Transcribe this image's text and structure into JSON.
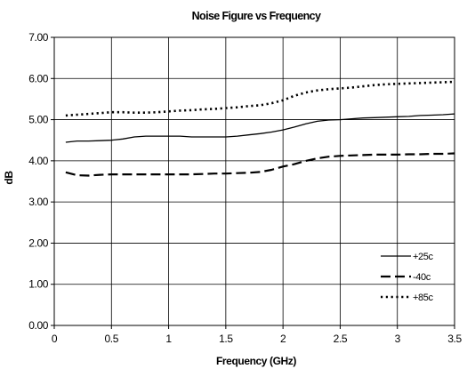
{
  "chart_data": {
    "type": "line",
    "title": "Noise Figure vs Frequency",
    "xlabel": "Frequency (GHz)",
    "ylabel": "dB",
    "xlim": [
      0,
      3.5
    ],
    "ylim": [
      0,
      7
    ],
    "x_ticks": [
      "0",
      "0.5",
      "1",
      "1.5",
      "2",
      "2.5",
      "3",
      "3.5"
    ],
    "y_ticks": [
      "0.00",
      "1.00",
      "2.00",
      "3.00",
      "4.00",
      "5.00",
      "6.00",
      "7.00"
    ],
    "grid": true,
    "legend_position": "bottom-right",
    "series": [
      {
        "name": "+25c",
        "line_style": "solid",
        "color": "#000000",
        "x": [
          0.1,
          0.2,
          0.3,
          0.4,
          0.5,
          0.6,
          0.7,
          0.8,
          0.9,
          1.0,
          1.1,
          1.2,
          1.3,
          1.4,
          1.5,
          1.6,
          1.7,
          1.8,
          1.9,
          2.0,
          2.1,
          2.2,
          2.3,
          2.4,
          2.5,
          2.6,
          2.7,
          2.8,
          2.9,
          3.0,
          3.1,
          3.2,
          3.3,
          3.4,
          3.5
        ],
        "values": [
          4.45,
          4.48,
          4.48,
          4.49,
          4.5,
          4.53,
          4.58,
          4.6,
          4.6,
          4.6,
          4.6,
          4.58,
          4.58,
          4.58,
          4.58,
          4.6,
          4.63,
          4.66,
          4.7,
          4.75,
          4.82,
          4.9,
          4.96,
          4.99,
          5.0,
          5.02,
          5.04,
          5.05,
          5.06,
          5.07,
          5.08,
          5.1,
          5.11,
          5.12,
          5.14
        ]
      },
      {
        "name": "-40c",
        "line_style": "dashed",
        "color": "#000000",
        "x": [
          0.1,
          0.2,
          0.3,
          0.4,
          0.5,
          0.6,
          0.7,
          0.8,
          0.9,
          1.0,
          1.1,
          1.2,
          1.3,
          1.4,
          1.5,
          1.6,
          1.7,
          1.8,
          1.9,
          2.0,
          2.1,
          2.2,
          2.3,
          2.4,
          2.5,
          2.6,
          2.7,
          2.8,
          2.9,
          3.0,
          3.1,
          3.2,
          3.3,
          3.4,
          3.5
        ],
        "values": [
          3.72,
          3.65,
          3.64,
          3.66,
          3.67,
          3.67,
          3.67,
          3.67,
          3.67,
          3.67,
          3.67,
          3.67,
          3.68,
          3.69,
          3.69,
          3.7,
          3.71,
          3.73,
          3.78,
          3.86,
          3.92,
          4.0,
          4.06,
          4.1,
          4.12,
          4.13,
          4.14,
          4.15,
          4.15,
          4.15,
          4.16,
          4.16,
          4.17,
          4.17,
          4.18
        ]
      },
      {
        "name": "+85c",
        "line_style": "dotted",
        "color": "#000000",
        "x": [
          0.1,
          0.2,
          0.3,
          0.4,
          0.5,
          0.6,
          0.7,
          0.8,
          0.9,
          1.0,
          1.1,
          1.2,
          1.3,
          1.4,
          1.5,
          1.6,
          1.7,
          1.8,
          1.9,
          2.0,
          2.1,
          2.2,
          2.3,
          2.4,
          2.5,
          2.6,
          2.7,
          2.8,
          2.9,
          3.0,
          3.1,
          3.2,
          3.3,
          3.4,
          3.5
        ],
        "values": [
          5.1,
          5.12,
          5.14,
          5.16,
          5.18,
          5.18,
          5.17,
          5.17,
          5.18,
          5.2,
          5.22,
          5.23,
          5.25,
          5.26,
          5.28,
          5.3,
          5.33,
          5.35,
          5.4,
          5.47,
          5.58,
          5.66,
          5.71,
          5.74,
          5.76,
          5.78,
          5.81,
          5.84,
          5.86,
          5.87,
          5.88,
          5.89,
          5.9,
          5.91,
          5.92
        ]
      }
    ]
  }
}
